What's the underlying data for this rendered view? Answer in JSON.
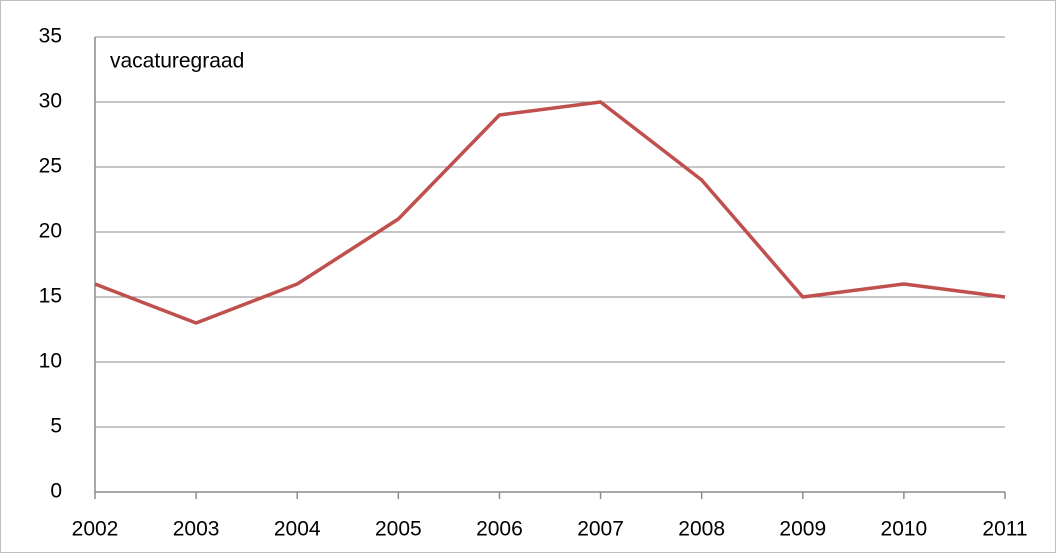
{
  "chart_data": {
    "type": "line",
    "categories": [
      "2002",
      "2003",
      "2004",
      "2005",
      "2006",
      "2007",
      "2008",
      "2009",
      "2010",
      "2011"
    ],
    "series": [
      {
        "name": "vacaturegraad",
        "color": "#c0504d",
        "values": [
          16,
          13,
          16,
          21,
          29,
          30,
          24,
          15,
          16,
          15
        ]
      }
    ],
    "ylim": [
      0,
      35
    ],
    "yticks": [
      0,
      5,
      10,
      15,
      20,
      25,
      30,
      35
    ],
    "grid": true
  }
}
